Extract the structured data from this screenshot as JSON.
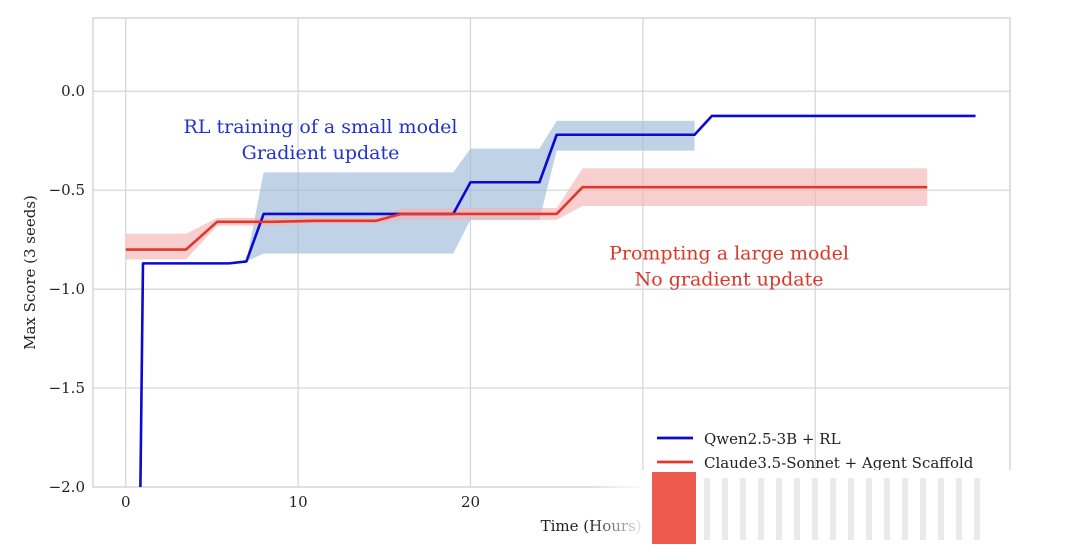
{
  "chart_data": {
    "type": "line",
    "title": "",
    "xlabel": "Time (Hours)",
    "ylabel": "Max Score (3 seeds)",
    "xlim": [
      -1.9,
      51.3
    ],
    "ylim": [
      -2.0,
      0.37
    ],
    "xticks": [
      0,
      10,
      20
    ],
    "xtick_labels": [
      "0",
      "10",
      "20"
    ],
    "yticks": [
      0.0,
      -0.5,
      -1.0,
      -1.5,
      -2.0
    ],
    "ytick_labels": [
      "0.0",
      "−0.5",
      "−1.0",
      "−1.5",
      "−2.0"
    ],
    "grid": true,
    "legend_position": "bottom-right",
    "series": [
      {
        "name": "Qwen2.5-3B + RL",
        "color": "#0a0ad0",
        "band_color": "#9dbad8",
        "x": [
          0.85,
          1.0,
          6.0,
          7.0,
          8.0,
          19.0,
          20.0,
          24.0,
          25.0,
          33.0,
          34.0,
          49.3
        ],
        "y": [
          -2.0,
          -0.87,
          -0.87,
          -0.86,
          -0.62,
          -0.62,
          -0.46,
          -0.46,
          -0.22,
          -0.22,
          -0.125,
          -0.125
        ],
        "band_x": [
          1.0,
          6.0,
          7.0,
          8.0,
          19.0,
          20.0,
          24.0,
          25.0,
          33.0
        ],
        "band_lower": [
          -0.87,
          -0.87,
          -0.86,
          -0.82,
          -0.82,
          -0.65,
          -0.65,
          -0.3,
          -0.3
        ],
        "band_upper": [
          -0.87,
          -0.87,
          -0.86,
          -0.41,
          -0.41,
          -0.29,
          -0.29,
          -0.15,
          -0.15
        ]
      },
      {
        "name": "Claude3.5-Sonnet + Agent Scaffold",
        "color": "#e0382a",
        "band_color": "#f5b5b5",
        "x": [
          0.0,
          3.5,
          5.3,
          8.5,
          11.0,
          14.5,
          16.0,
          25.0,
          26.5,
          46.5
        ],
        "y": [
          -0.8,
          -0.8,
          -0.66,
          -0.66,
          -0.655,
          -0.655,
          -0.62,
          -0.62,
          -0.485,
          -0.485
        ],
        "band_x": [
          0.0,
          3.5,
          5.3,
          8.5,
          11.0,
          14.5,
          16.0,
          25.0,
          26.5,
          46.5
        ],
        "band_lower": [
          -0.85,
          -0.85,
          -0.68,
          -0.68,
          -0.67,
          -0.67,
          -0.65,
          -0.65,
          -0.58,
          -0.58
        ],
        "band_upper": [
          -0.72,
          -0.72,
          -0.64,
          -0.64,
          -0.64,
          -0.64,
          -0.59,
          -0.59,
          -0.39,
          -0.39
        ]
      }
    ],
    "annotations": [
      {
        "lines": [
          "RL training of a small model",
          "Gradient update"
        ],
        "color": "#2233cc",
        "x": 11.3,
        "y": -0.21
      },
      {
        "lines": [
          "Prompting a large model",
          "No gradient update"
        ],
        "color": "#d8372a",
        "x": 35.0,
        "y": -0.85
      }
    ]
  }
}
